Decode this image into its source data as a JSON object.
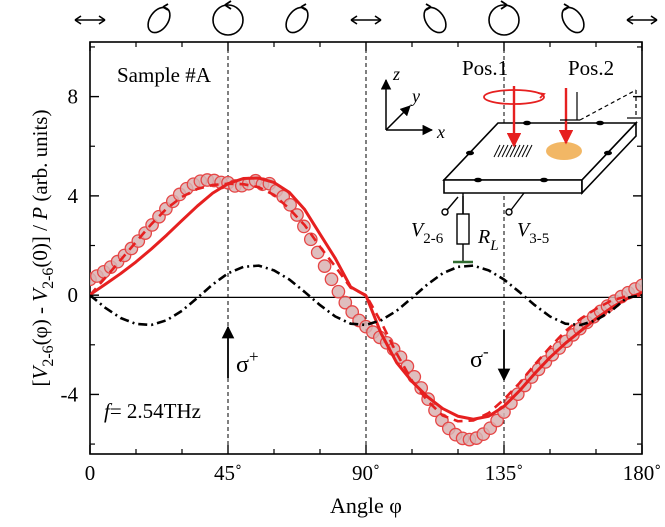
{
  "chart_data": {
    "type": "line",
    "title": "",
    "xlabel": "Angle φ",
    "ylabel_parts": [
      "[V",
      "2-6",
      "(φ) - V",
      "2-6",
      "(0)] / ",
      "P",
      " (arb. units)"
    ],
    "xlim": [
      0,
      180
    ],
    "ylim": [
      -6.4,
      10.2
    ],
    "x_ticks": [
      0,
      45,
      90,
      135,
      180
    ],
    "x_tick_labels": [
      "0",
      "45˚",
      "90˚",
      "135˚",
      "180˚"
    ],
    "y_ticks": [
      -4,
      0,
      4,
      8
    ],
    "y_tick_labels": [
      "-4",
      "0",
      "4",
      "8"
    ],
    "vlines": [
      45,
      90,
      135
    ],
    "sample_label": "Sample #A",
    "freq_label_prefix": "f",
    "freq_label_value": "= 2.54THz",
    "annotations": [
      {
        "text": "σ",
        "sup": "+",
        "x": 45,
        "y": -1.6,
        "direction": "up"
      },
      {
        "text": "σ",
        "sup": "-",
        "x": 135,
        "y": -2.6,
        "direction": "down"
      }
    ],
    "polarization_row": [
      "linear",
      "elliptical-cw",
      "circular-cw",
      "elliptical-cw",
      "linear",
      "elliptical-ccw",
      "circular-ccw",
      "elliptical-ccw",
      "linear"
    ],
    "series": [
      {
        "name": "data",
        "style": "circles",
        "color": "#e64646",
        "x": [
          0,
          2.25,
          4.5,
          6.75,
          9,
          11.25,
          13.5,
          15.75,
          18,
          20.25,
          22.5,
          24.75,
          27,
          29.25,
          31.5,
          33.75,
          36,
          38.25,
          40.5,
          42.75,
          45,
          47.25,
          49.5,
          51.75,
          54,
          56.25,
          58.5,
          60.75,
          63,
          65.25,
          67.5,
          69.75,
          72,
          74.25,
          76.5,
          78.75,
          81,
          83.25,
          85.5,
          87.75,
          90,
          92.25,
          94.5,
          96.75,
          99,
          101.25,
          103.5,
          105.75,
          108,
          110.25,
          112.5,
          114.75,
          117,
          119.25,
          121.5,
          123.75,
          126,
          128.25,
          130.5,
          132.75,
          135,
          137.25,
          139.5,
          141.75,
          144,
          146.25,
          148.5,
          150.75,
          153,
          155.25,
          157.5,
          159.75,
          162,
          164.25,
          166.5,
          168.75,
          171,
          173.25,
          175.5,
          177.75,
          180
        ],
        "y": [
          0.64,
          0.77,
          0.94,
          1.13,
          1.35,
          1.6,
          1.88,
          2.18,
          2.5,
          2.83,
          3.16,
          3.48,
          3.78,
          4.06,
          4.29,
          4.47,
          4.59,
          4.64,
          4.62,
          4.54,
          4.53,
          4.4,
          4.41,
          4.49,
          4.61,
          4.47,
          4.49,
          4.21,
          3.97,
          3.64,
          3.23,
          2.77,
          2.25,
          1.72,
          1.17,
          0.64,
          0.14,
          -0.3,
          -0.68,
          -1.02,
          -1.27,
          -1.49,
          -1.7,
          -1.92,
          -2.18,
          -2.5,
          -2.87,
          -3.29,
          -3.74,
          -4.19,
          -4.64,
          -5.04,
          -5.37,
          -5.62,
          -5.77,
          -5.82,
          -5.76,
          -5.6,
          -5.36,
          -5.05,
          -4.71,
          -4.35,
          -3.99,
          -3.64,
          -3.3,
          -2.99,
          -2.69,
          -2.4,
          -2.13,
          -1.86,
          -1.6,
          -1.35,
          -1.1,
          -0.87,
          -0.65,
          -0.44,
          -0.24,
          -0.06,
          0.1,
          0.25,
          0.39
        ]
      },
      {
        "name": "fit",
        "style": "solid",
        "color": "#e62020",
        "x": [
          0,
          5,
          10,
          15,
          20,
          25,
          30,
          35,
          40,
          45,
          50,
          55,
          60,
          65,
          70,
          75,
          80,
          85,
          90,
          95,
          100,
          105,
          110,
          115,
          120,
          125,
          130,
          135,
          140,
          145,
          150,
          155,
          160,
          165,
          170,
          175,
          180
        ],
        "y": [
          0.02,
          0.44,
          0.87,
          1.34,
          1.86,
          2.42,
          3.01,
          3.59,
          4.11,
          4.49,
          4.7,
          4.72,
          4.54,
          4.14,
          3.45,
          2.46,
          1.48,
          0.33,
          -0.02,
          -1.56,
          -2.72,
          -3.48,
          -4.09,
          -4.57,
          -4.88,
          -5,
          -4.88,
          -4.48,
          -3.86,
          -3.16,
          -2.51,
          -1.94,
          -1.44,
          -0.95,
          -0.51,
          -0.15,
          0.1
        ]
      },
      {
        "name": "model-dashed",
        "style": "dashed",
        "color": "#e62020",
        "x": [
          0,
          5,
          10,
          15,
          20,
          25,
          30,
          35,
          40,
          45,
          50,
          55,
          60,
          65,
          70,
          75,
          80,
          85,
          90,
          95,
          100,
          105,
          110,
          115,
          120,
          125,
          130,
          135,
          140,
          145,
          150,
          155,
          160,
          165,
          170,
          175,
          180
        ],
        "y": [
          0,
          0.7,
          1.42,
          2.14,
          2.86,
          3.49,
          3.96,
          4.28,
          4.44,
          4.49,
          4.47,
          4.35,
          4.04,
          3.48,
          2.82,
          1.95,
          1.15,
          0.3,
          0,
          -1.1,
          -2.35,
          -3.45,
          -4.25,
          -4.85,
          -5.08,
          -5.05,
          -4.75,
          -4.2,
          -3.55,
          -2.8,
          -2.1,
          -1.45,
          -0.95,
          -0.55,
          -0.22,
          -0.05,
          0
        ]
      },
      {
        "name": "model-dashdot",
        "style": "dashdot",
        "color": "#000000",
        "x": [
          0,
          5,
          10,
          15,
          20,
          25,
          30,
          35,
          40,
          45,
          50,
          55,
          60,
          65,
          70,
          75,
          80,
          85,
          90,
          95,
          100,
          105,
          110,
          115,
          120,
          125,
          130,
          135,
          140,
          145,
          150,
          155,
          160,
          165,
          170,
          175,
          180
        ],
        "y": [
          0,
          -0.51,
          -0.92,
          -1.16,
          -1.2,
          -1.01,
          -0.63,
          -0.11,
          0.43,
          0.88,
          1.14,
          1.19,
          1,
          0.63,
          0.13,
          -0.4,
          -0.86,
          -1.15,
          -1.2,
          -1.01,
          -0.63,
          -0.11,
          0.43,
          0.88,
          1.14,
          1.19,
          1,
          0.63,
          0.13,
          -0.4,
          -0.86,
          -1.15,
          -1.2,
          -1.01,
          -0.63,
          -0.11,
          0
        ]
      }
    ]
  },
  "inset": {
    "axis_x": "x",
    "axis_y": "y",
    "axis_z": "z",
    "pos1": "Pos.1",
    "pos2": "Pos.2",
    "v26": "V",
    "v26_sub": "2-6",
    "v35": "V",
    "v35_sub": "3-5",
    "rl": "R",
    "rl_sub": "L",
    "colors": {
      "beam": "#e62020",
      "spot": "#f2b765",
      "plate": "#ffffff"
    }
  }
}
